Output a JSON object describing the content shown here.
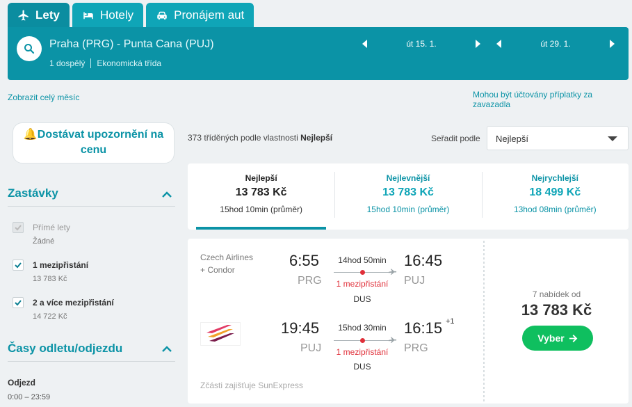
{
  "tabs": [
    {
      "label": "Lety",
      "icon": "plane-icon",
      "active": true
    },
    {
      "label": "Hotely",
      "icon": "bed-icon",
      "active": false
    },
    {
      "label": "Pronájem aut",
      "icon": "car-icon",
      "active": false
    }
  ],
  "search": {
    "route": "Praha (PRG) - Punta Cana (PUJ)",
    "passengers": "1 dospělý",
    "cabin": "Ekonomická třída",
    "depart_date": "út 15. 1.",
    "return_date": "út 29. 1."
  },
  "links": {
    "full_month": "Zobrazit celý měsíc",
    "baggage_fees": "Mohou být účtovány příplatky za zavazadla"
  },
  "sidebar": {
    "alert_button": "Dostávat upozornění na cenu",
    "stops_heading": "Zastávky",
    "stops": [
      {
        "label": "Přímé lety",
        "sub": "Žádné",
        "checked": true,
        "disabled": true
      },
      {
        "label": "1 mezipřistání",
        "sub": "13 783 Kč",
        "checked": true,
        "disabled": false
      },
      {
        "label": "2 a více mezipřistání",
        "sub": "14 722 Kč",
        "checked": true,
        "disabled": false
      }
    ],
    "times_heading": "Časy odletu/odjezdu",
    "departure_label": "Odjezd",
    "departure_range": "0:00 – 23:59"
  },
  "results": {
    "count_prefix": "373 tříděných podle vlastnosti",
    "count_sort": "Nejlepší",
    "sort_label": "Seřadit podle",
    "sort_value": "Nejlepší"
  },
  "sort_tabs": [
    {
      "title": "Nejlepší",
      "price": "13 783 Kč",
      "duration": "15hod 10min (průměr)",
      "active": true
    },
    {
      "title": "Nejlevnější",
      "price": "13 783 Kč",
      "duration": "15hod 10min (průměr)",
      "active": false
    },
    {
      "title": "Nejrychlejší",
      "price": "18 499 Kč",
      "duration": "13hod 08min (průměr)",
      "active": false
    }
  ],
  "flight": {
    "carrier_line1": "Czech Airlines",
    "carrier_line2": "+ Condor",
    "outbound": {
      "dep_time": "6:55",
      "dep_code": "PRG",
      "duration": "14hod 50min",
      "stops": "1 mezipřistání",
      "via": "DUS",
      "arr_time": "16:45",
      "arr_code": "PUJ"
    },
    "inbound": {
      "dep_time": "19:45",
      "dep_code": "PUJ",
      "duration": "15hod 30min",
      "stops": "1 mezipřistání",
      "via": "DUS",
      "arr_time": "16:15",
      "arr_code": "PRG",
      "day_offset": "+1"
    },
    "operated": "Zčásti zajišťuje SunExpress",
    "offers": "7 nabídek od",
    "price": "13 783 Kč",
    "select_label": "Vyber"
  },
  "colors": {
    "accent": "#0b93a6",
    "tab": "#0fa5b7",
    "cta": "#0fbf5f",
    "stops": "#e0303a"
  }
}
